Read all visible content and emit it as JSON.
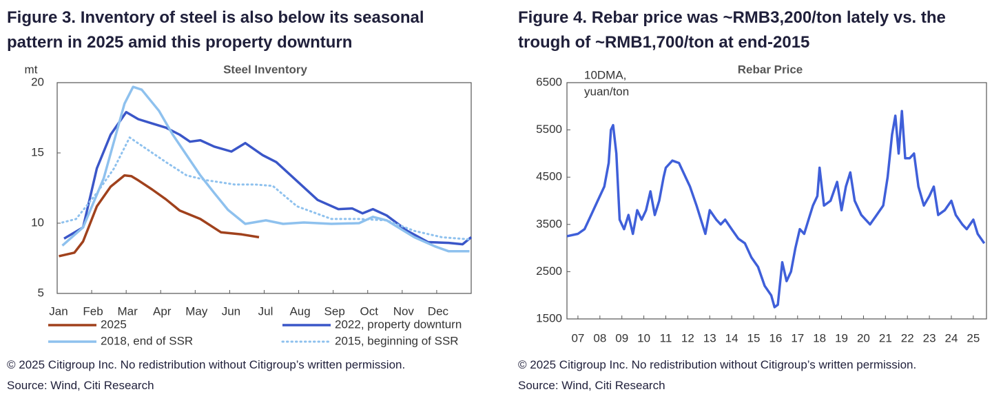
{
  "chart_data": [
    {
      "type": "line",
      "figure_title": "Figure 3. Inventory of steel is also below its seasonal pattern in 2025 amid this property downturn",
      "title": "Steel Inventory",
      "y_unit": "mt",
      "xlim": [
        0,
        12
      ],
      "xticks": [
        {
          "value": 0,
          "label": "Jan"
        },
        {
          "value": 1,
          "label": "Feb"
        },
        {
          "value": 2,
          "label": "Mar"
        },
        {
          "value": 3,
          "label": "Apr"
        },
        {
          "value": 4,
          "label": "May"
        },
        {
          "value": 5,
          "label": "Jun"
        },
        {
          "value": 6,
          "label": "Jul"
        },
        {
          "value": 7,
          "label": "Aug"
        },
        {
          "value": 8,
          "label": "Sep"
        },
        {
          "value": 9,
          "label": "Oct"
        },
        {
          "value": 10,
          "label": "Nov"
        },
        {
          "value": 11,
          "label": "Dec"
        }
      ],
      "ylim": [
        5,
        20
      ],
      "yticks": [
        5,
        10,
        15,
        20
      ],
      "series": [
        {
          "name": "2025",
          "color": "#a0411c",
          "dash": false,
          "x": [
            0.05,
            0.5,
            0.75,
            1.15,
            1.55,
            1.95,
            2.15,
            2.35,
            2.75,
            3.15,
            3.55,
            4.15,
            4.75,
            5.35,
            5.85
          ],
          "values": [
            7.65,
            7.9,
            8.7,
            11.2,
            12.6,
            13.4,
            13.35,
            13.05,
            12.4,
            11.7,
            10.9,
            10.3,
            9.35,
            9.2,
            9.0
          ]
        },
        {
          "name": "2022, property downturn",
          "color": "#3a56c8",
          "dash": false,
          "x": [
            0.2,
            0.75,
            1.15,
            1.55,
            2.0,
            2.35,
            2.75,
            3.15,
            3.55,
            3.85,
            4.15,
            4.55,
            5.05,
            5.45,
            5.95,
            6.35,
            6.95,
            7.55,
            8.15,
            8.55,
            8.85,
            9.15,
            9.55,
            10.15,
            10.75,
            11.35,
            11.75,
            12.0
          ],
          "values": [
            8.9,
            9.7,
            13.9,
            16.3,
            17.9,
            17.4,
            17.1,
            16.8,
            16.3,
            15.8,
            15.9,
            15.45,
            15.1,
            15.7,
            14.85,
            14.35,
            13.0,
            11.65,
            11.0,
            11.05,
            10.7,
            11.0,
            10.55,
            9.45,
            8.65,
            8.6,
            8.5,
            9.0
          ]
        },
        {
          "name": "2018, end of SSR",
          "color": "#8ec1ee",
          "dash": false,
          "x": [
            0.15,
            0.75,
            1.35,
            1.95,
            2.2,
            2.45,
            2.95,
            3.35,
            3.75,
            4.15,
            4.55,
            4.95,
            5.45,
            6.05,
            6.55,
            7.15,
            7.95,
            8.75,
            9.15,
            9.55,
            10.35,
            10.95,
            11.35,
            11.95
          ],
          "values": [
            8.4,
            9.7,
            13.2,
            18.5,
            19.7,
            19.5,
            18.0,
            16.3,
            14.85,
            13.4,
            12.15,
            10.95,
            9.95,
            10.2,
            9.95,
            10.05,
            9.95,
            10.0,
            10.45,
            10.2,
            9.0,
            8.35,
            8.0,
            8.0
          ]
        },
        {
          "name": "2015, beginning of SSR",
          "color": "#8ec1ee",
          "dash": true,
          "x": [
            0.15,
            0.55,
            1.15,
            1.65,
            2.1,
            2.55,
            3.15,
            3.75,
            4.35,
            5.15,
            5.75,
            6.25,
            6.95,
            7.95,
            8.75,
            9.55,
            10.35,
            11.15,
            11.95
          ],
          "values": [
            10.05,
            10.3,
            12.15,
            13.9,
            16.1,
            15.35,
            14.35,
            13.4,
            13.05,
            12.75,
            12.75,
            12.65,
            11.2,
            10.3,
            10.3,
            10.2,
            9.45,
            9.0,
            8.85
          ]
        }
      ],
      "copyright": "© 2025 Citigroup Inc. No redistribution without Citigroup’s written permission.",
      "source": "Source: Wind, Citi Research"
    },
    {
      "type": "line",
      "figure_title": "Figure 4. Rebar price was ~RMB3,200/ton lately vs. the trough of ~RMB1,700/ton at end-2015",
      "title": "Rebar Price",
      "annotation": [
        "10DMA,",
        "yuan/ton"
      ],
      "xlim": [
        2006.5,
        2025.6
      ],
      "xticks": [
        {
          "value": 2007,
          "label": "07"
        },
        {
          "value": 2008,
          "label": "08"
        },
        {
          "value": 2009,
          "label": "09"
        },
        {
          "value": 2010,
          "label": "10"
        },
        {
          "value": 2011,
          "label": "11"
        },
        {
          "value": 2012,
          "label": "12"
        },
        {
          "value": 2013,
          "label": "13"
        },
        {
          "value": 2014,
          "label": "14"
        },
        {
          "value": 2015,
          "label": "15"
        },
        {
          "value": 2016,
          "label": "16"
        },
        {
          "value": 2017,
          "label": "17"
        },
        {
          "value": 2018,
          "label": "18"
        },
        {
          "value": 2019,
          "label": "19"
        },
        {
          "value": 2020,
          "label": "20"
        },
        {
          "value": 2021,
          "label": "21"
        },
        {
          "value": 2022,
          "label": "22"
        },
        {
          "value": 2023,
          "label": "23"
        },
        {
          "value": 2024,
          "label": "24"
        },
        {
          "value": 2025,
          "label": "25"
        }
      ],
      "ylim": [
        1500,
        6500
      ],
      "yticks": [
        1500,
        2500,
        3500,
        4500,
        5500,
        6500
      ],
      "series": [
        {
          "color": "#3f5fd9",
          "dash": false,
          "x": [
            2006.5,
            2007.0,
            2007.3,
            2007.6,
            2007.9,
            2008.2,
            2008.4,
            2008.5,
            2008.6,
            2008.75,
            2008.9,
            2009.1,
            2009.3,
            2009.5,
            2009.7,
            2009.9,
            2010.1,
            2010.3,
            2010.5,
            2010.7,
            2010.9,
            2011.0,
            2011.3,
            2011.6,
            2011.9,
            2012.1,
            2012.4,
            2012.6,
            2012.8,
            2013.0,
            2013.3,
            2013.5,
            2013.7,
            2014.0,
            2014.3,
            2014.6,
            2014.9,
            2015.2,
            2015.5,
            2015.8,
            2015.95,
            2016.1,
            2016.3,
            2016.5,
            2016.7,
            2016.9,
            2017.1,
            2017.3,
            2017.5,
            2017.7,
            2017.9,
            2018.0,
            2018.2,
            2018.5,
            2018.8,
            2019.0,
            2019.2,
            2019.4,
            2019.6,
            2019.9,
            2020.1,
            2020.3,
            2020.6,
            2020.9,
            2021.1,
            2021.3,
            2021.45,
            2021.6,
            2021.75,
            2021.9,
            2022.1,
            2022.3,
            2022.5,
            2022.75,
            2023.0,
            2023.2,
            2023.4,
            2023.7,
            2024.0,
            2024.2,
            2024.5,
            2024.7,
            2025.0,
            2025.2,
            2025.5
          ],
          "values": [
            3250,
            3300,
            3400,
            3700,
            4000,
            4300,
            4800,
            5500,
            5600,
            5000,
            3600,
            3400,
            3700,
            3300,
            3800,
            3600,
            3800,
            4200,
            3700,
            4000,
            4500,
            4700,
            4850,
            4800,
            4500,
            4300,
            3900,
            3600,
            3300,
            3800,
            3600,
            3500,
            3600,
            3400,
            3200,
            3100,
            2800,
            2600,
            2200,
            2000,
            1750,
            1800,
            2700,
            2300,
            2500,
            3000,
            3400,
            3300,
            3600,
            3900,
            4100,
            4700,
            3900,
            4000,
            4400,
            3800,
            4300,
            4600,
            4000,
            3700,
            3600,
            3500,
            3700,
            3900,
            4500,
            5400,
            5800,
            5000,
            5900,
            4900,
            4900,
            5000,
            4300,
            3900,
            4100,
            4300,
            3700,
            3800,
            4000,
            3700,
            3500,
            3400,
            3600,
            3300,
            3100
          ]
        }
      ],
      "copyright": "© 2025 Citigroup Inc. No redistribution without Citigroup’s written permission.",
      "source": "Source: Wind, Citi Research"
    }
  ]
}
